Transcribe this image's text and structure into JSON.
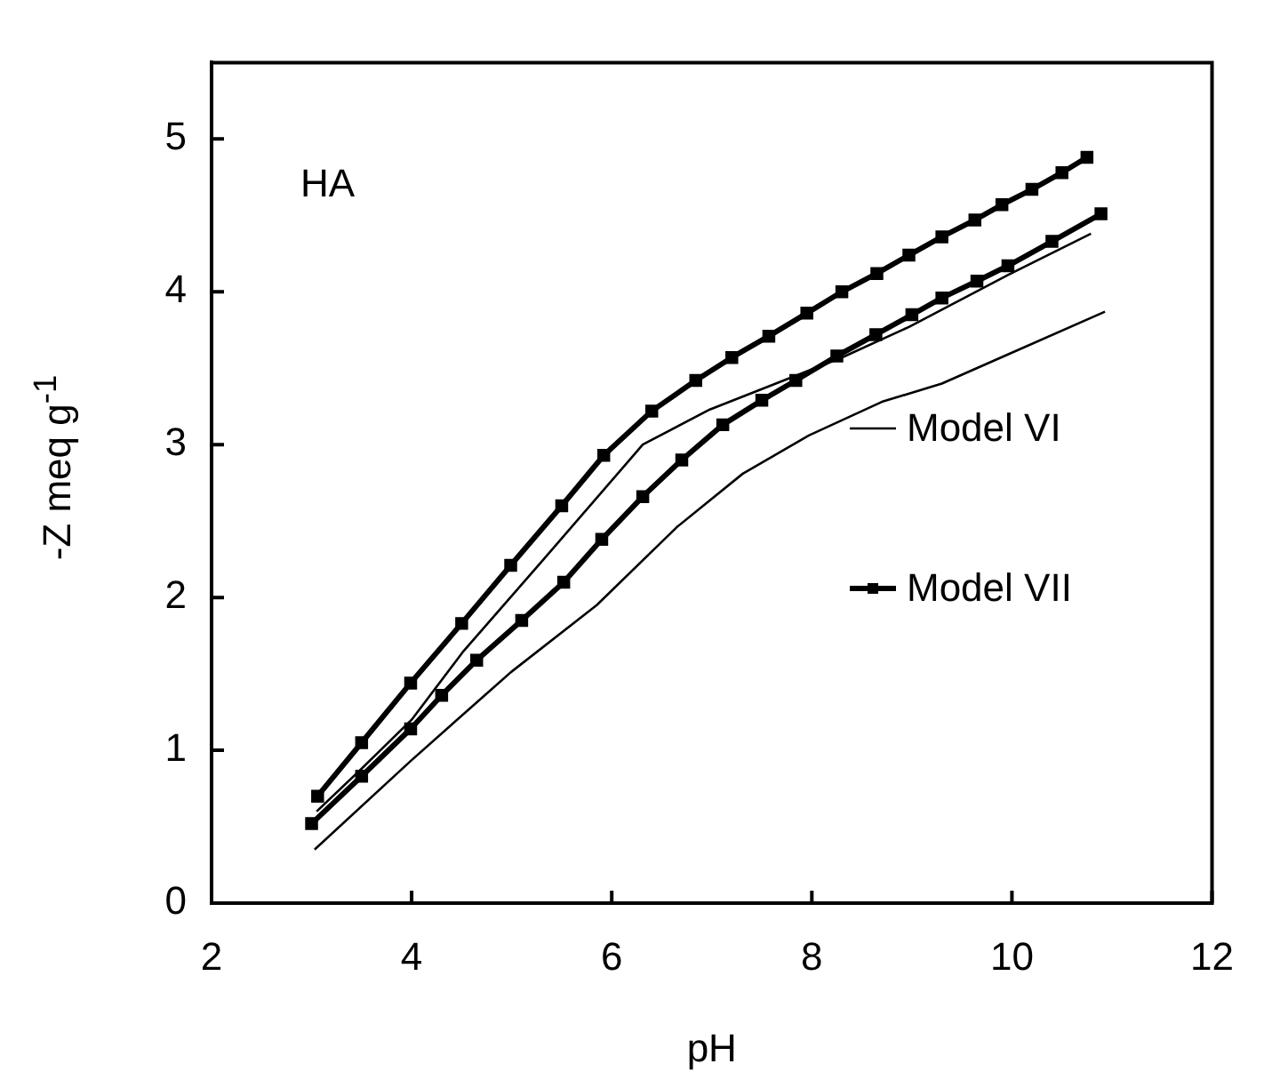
{
  "chart_data": {
    "type": "line",
    "xlabel": "pH",
    "ylabel": "-Z meq g$^{-1}$",
    "annotations": [
      "HA"
    ],
    "xlim": [
      2,
      12
    ],
    "xticks": [
      2,
      4,
      6,
      8,
      10,
      12
    ],
    "ylim": [
      0,
      5.5
    ],
    "yticks": [
      0,
      1,
      2,
      3,
      4,
      5
    ],
    "grid": false,
    "legend": "bottom right",
    "series": [
      {
        "name": "Model VI",
        "color": "#000000",
        "marker": "none",
        "x": [
          3.05,
          3.5,
          4.0,
          4.52,
          5.32,
          6.31,
          6.98,
          7.64,
          8.3,
          8.97,
          9.96,
          10.79
        ],
        "values": [
          0.6,
          0.88,
          1.2,
          1.65,
          2.25,
          3.0,
          3.23,
          3.4,
          3.57,
          3.77,
          4.11,
          4.38
        ]
      },
      {
        "color": "#000000",
        "marker": "none",
        "x": [
          3.03,
          3.99,
          4.99,
          5.85,
          6.65,
          7.31,
          7.97,
          8.7,
          9.3,
          9.96,
          10.93
        ],
        "values": [
          0.35,
          0.93,
          1.51,
          1.95,
          2.46,
          2.81,
          3.06,
          3.28,
          3.4,
          3.59,
          3.87
        ]
      },
      {
        "name": "Model VII",
        "color": "#000000",
        "marker": "square",
        "x": [
          3.06,
          3.5,
          3.99,
          4.5,
          4.99,
          5.5,
          5.92,
          6.4,
          6.84,
          7.2,
          7.57,
          7.95,
          8.3,
          8.65,
          8.97,
          9.3,
          9.63,
          9.9,
          10.2,
          10.5,
          10.75
        ],
        "values": [
          0.7,
          1.05,
          1.44,
          1.83,
          2.21,
          2.6,
          2.93,
          3.22,
          3.42,
          3.57,
          3.71,
          3.86,
          4.0,
          4.12,
          4.24,
          4.36,
          4.47,
          4.57,
          4.67,
          4.78,
          4.88
        ]
      },
      {
        "color": "#000000",
        "marker": "square",
        "x": [
          3.0,
          3.5,
          3.99,
          4.3,
          4.65,
          5.1,
          5.52,
          5.9,
          6.31,
          6.7,
          7.11,
          7.5,
          7.84,
          8.25,
          8.64,
          9.0,
          9.3,
          9.65,
          9.96,
          10.4,
          10.89
        ],
        "values": [
          0.52,
          0.83,
          1.14,
          1.36,
          1.59,
          1.85,
          2.1,
          2.38,
          2.66,
          2.9,
          3.13,
          3.29,
          3.42,
          3.58,
          3.72,
          3.85,
          3.96,
          4.07,
          4.17,
          4.33,
          4.51
        ]
      }
    ]
  }
}
